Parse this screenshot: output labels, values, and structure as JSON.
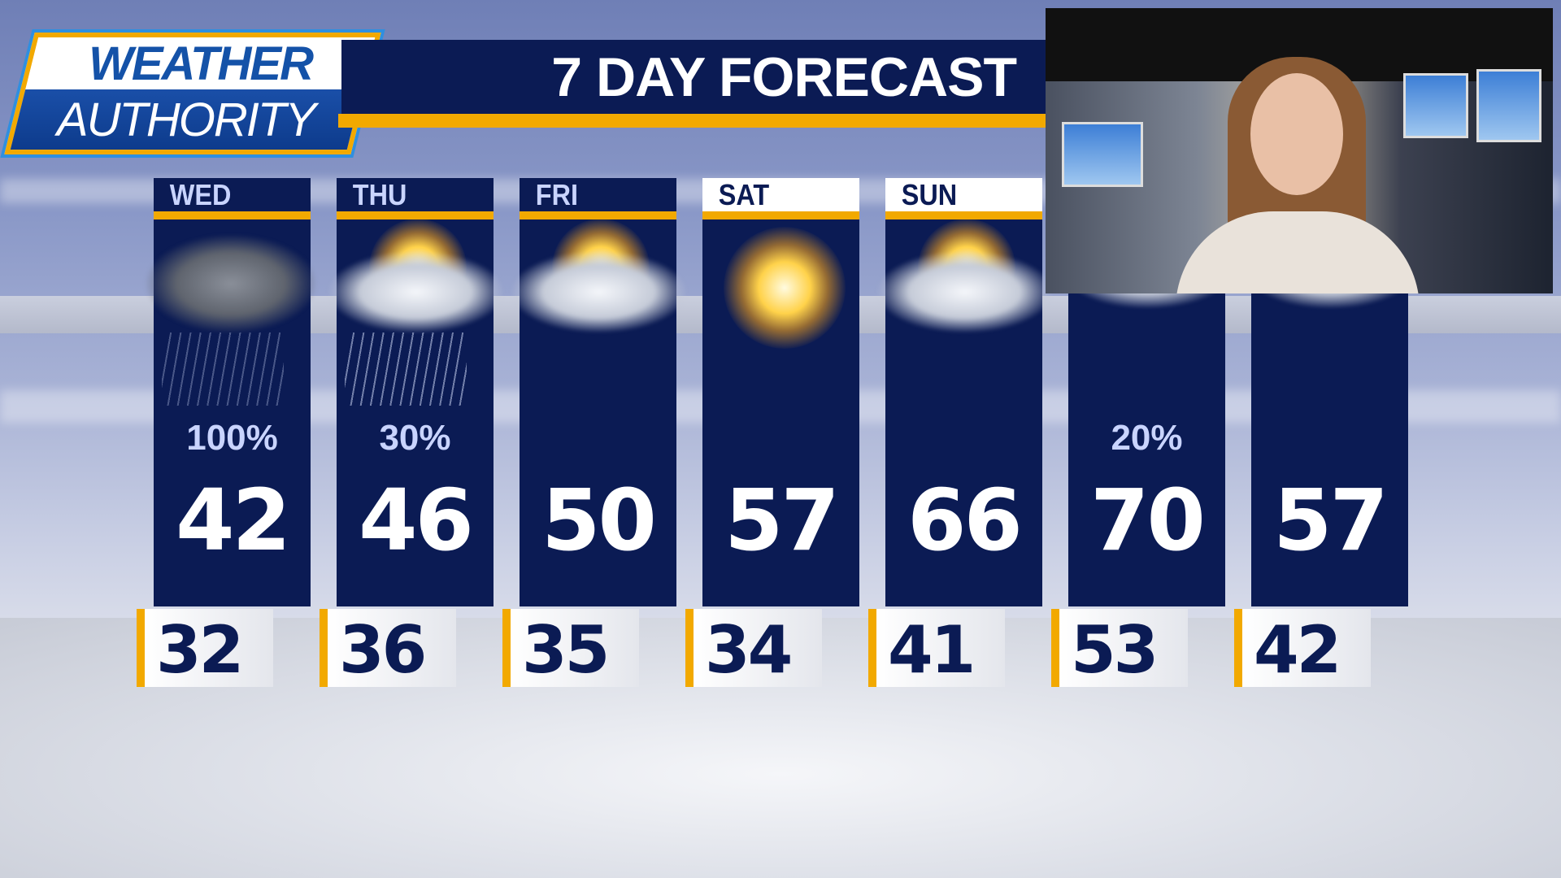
{
  "logo": {
    "line1": "WEATHER",
    "line2": "AUTHORITY"
  },
  "title": "7 DAY FORECAST",
  "colors": {
    "navy": "#0b1b54",
    "accent": "#f2a900"
  },
  "days": [
    {
      "day": "WED",
      "icon": "snow-cloud-icon",
      "precip": "100%",
      "high": "42",
      "low": "32"
    },
    {
      "day": "THU",
      "icon": "rain-partly-sunny-icon",
      "precip": "30%",
      "high": "46",
      "low": "36"
    },
    {
      "day": "FRI",
      "icon": "partly-sunny-icon",
      "precip": "",
      "high": "50",
      "low": "35"
    },
    {
      "day": "SAT",
      "icon": "sunny-icon",
      "precip": "",
      "high": "57",
      "low": "34"
    },
    {
      "day": "SUN",
      "icon": "partly-sunny-icon",
      "precip": "",
      "high": "66",
      "low": "41"
    },
    {
      "day": "",
      "icon": "partly-sunny-icon",
      "precip": "20%",
      "high": "70",
      "low": "53"
    },
    {
      "day": "",
      "icon": "partly-sunny-icon",
      "precip": "",
      "high": "57",
      "low": "42"
    }
  ]
}
